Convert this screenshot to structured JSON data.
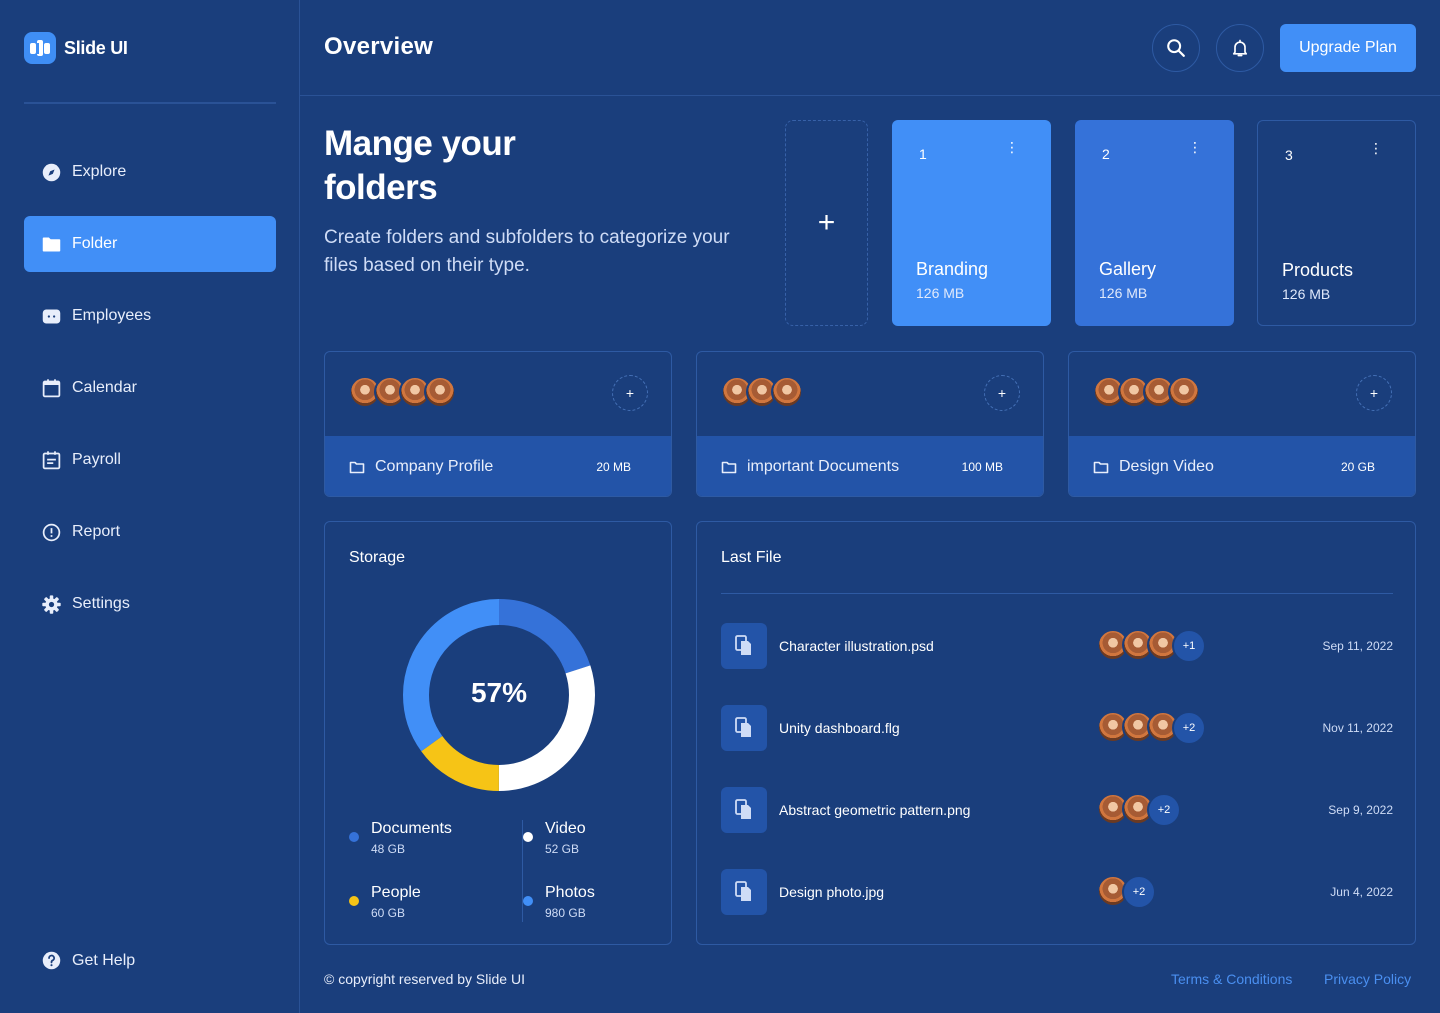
{
  "app": {
    "name": "Slide UI"
  },
  "sidebar": {
    "items": [
      {
        "label": "Explore",
        "icon": "compass-icon",
        "active": false
      },
      {
        "label": "Folder",
        "icon": "folder-icon",
        "active": true
      },
      {
        "label": "Employees",
        "icon": "employees-icon",
        "active": false
      },
      {
        "label": "Calendar",
        "icon": "calendar-icon",
        "active": false
      },
      {
        "label": "Payroll",
        "icon": "payroll-icon",
        "active": false
      },
      {
        "label": "Report",
        "icon": "alert-circle-icon",
        "active": false
      },
      {
        "label": "Settings",
        "icon": "gear-icon",
        "active": false
      }
    ],
    "help_label": "Get Help"
  },
  "header": {
    "title": "Overview",
    "upgrade_label": "Upgrade Plan"
  },
  "hero": {
    "title": "Mange your folders",
    "subtitle": "Create folders and subfolders to categorize your files based on their type."
  },
  "add_folder_label": "+",
  "folders": [
    {
      "number": "1",
      "name": "Branding",
      "size": "126 MB",
      "color": "#418ff7"
    },
    {
      "number": "2",
      "name": "Gallery",
      "size": "126 MB",
      "color": "#3572d9"
    },
    {
      "number": "3",
      "name": "Products",
      "size": "126 MB",
      "color": "#1a3e7c"
    }
  ],
  "subfolders": [
    {
      "name": "Company Profile",
      "size": "20 MB",
      "avatars": 4
    },
    {
      "name": "important Documents",
      "size": "100 MB",
      "avatars": 3
    },
    {
      "name": "Design Video",
      "size": "20 GB",
      "avatars": 4
    }
  ],
  "storage": {
    "title": "Storage",
    "percent_label": "57%",
    "legend": [
      {
        "label": "Documents",
        "size": "48 GB",
        "color": "#3572d9"
      },
      {
        "label": "Video",
        "size": "52 GB",
        "color": "#ffffff"
      },
      {
        "label": "People",
        "size": "60 GB",
        "color": "#f6c416"
      },
      {
        "label": "Photos",
        "size": "980 GB",
        "color": "#418ff7"
      }
    ],
    "segments": [
      {
        "name": "Documents",
        "fraction": 0.2,
        "color": "#3572d9"
      },
      {
        "name": "Video",
        "fraction": 0.3,
        "color": "#ffffff"
      },
      {
        "name": "People",
        "fraction": 0.15,
        "color": "#f6c416"
      },
      {
        "name": "Photos",
        "fraction": 0.35,
        "color": "#418ff7"
      }
    ]
  },
  "last_file": {
    "title": "Last File",
    "files": [
      {
        "name": "Character illustration.psd",
        "avatars": 3,
        "more": "+1",
        "date": "Sep 11, 2022"
      },
      {
        "name": "Unity dashboard.flg",
        "avatars": 3,
        "more": "+2",
        "date": "Nov 11, 2022"
      },
      {
        "name": "Abstract geometric pattern.png",
        "avatars": 2,
        "more": "+2",
        "date": "Sep 9, 2022"
      },
      {
        "name": "Design photo.jpg",
        "avatars": 1,
        "more": "+2",
        "date": "Jun 4, 2022"
      }
    ]
  },
  "footer": {
    "copyright": "© copyright reserved by Slide UI",
    "terms": "Terms & Conditions",
    "privacy": "Privacy Policy"
  }
}
